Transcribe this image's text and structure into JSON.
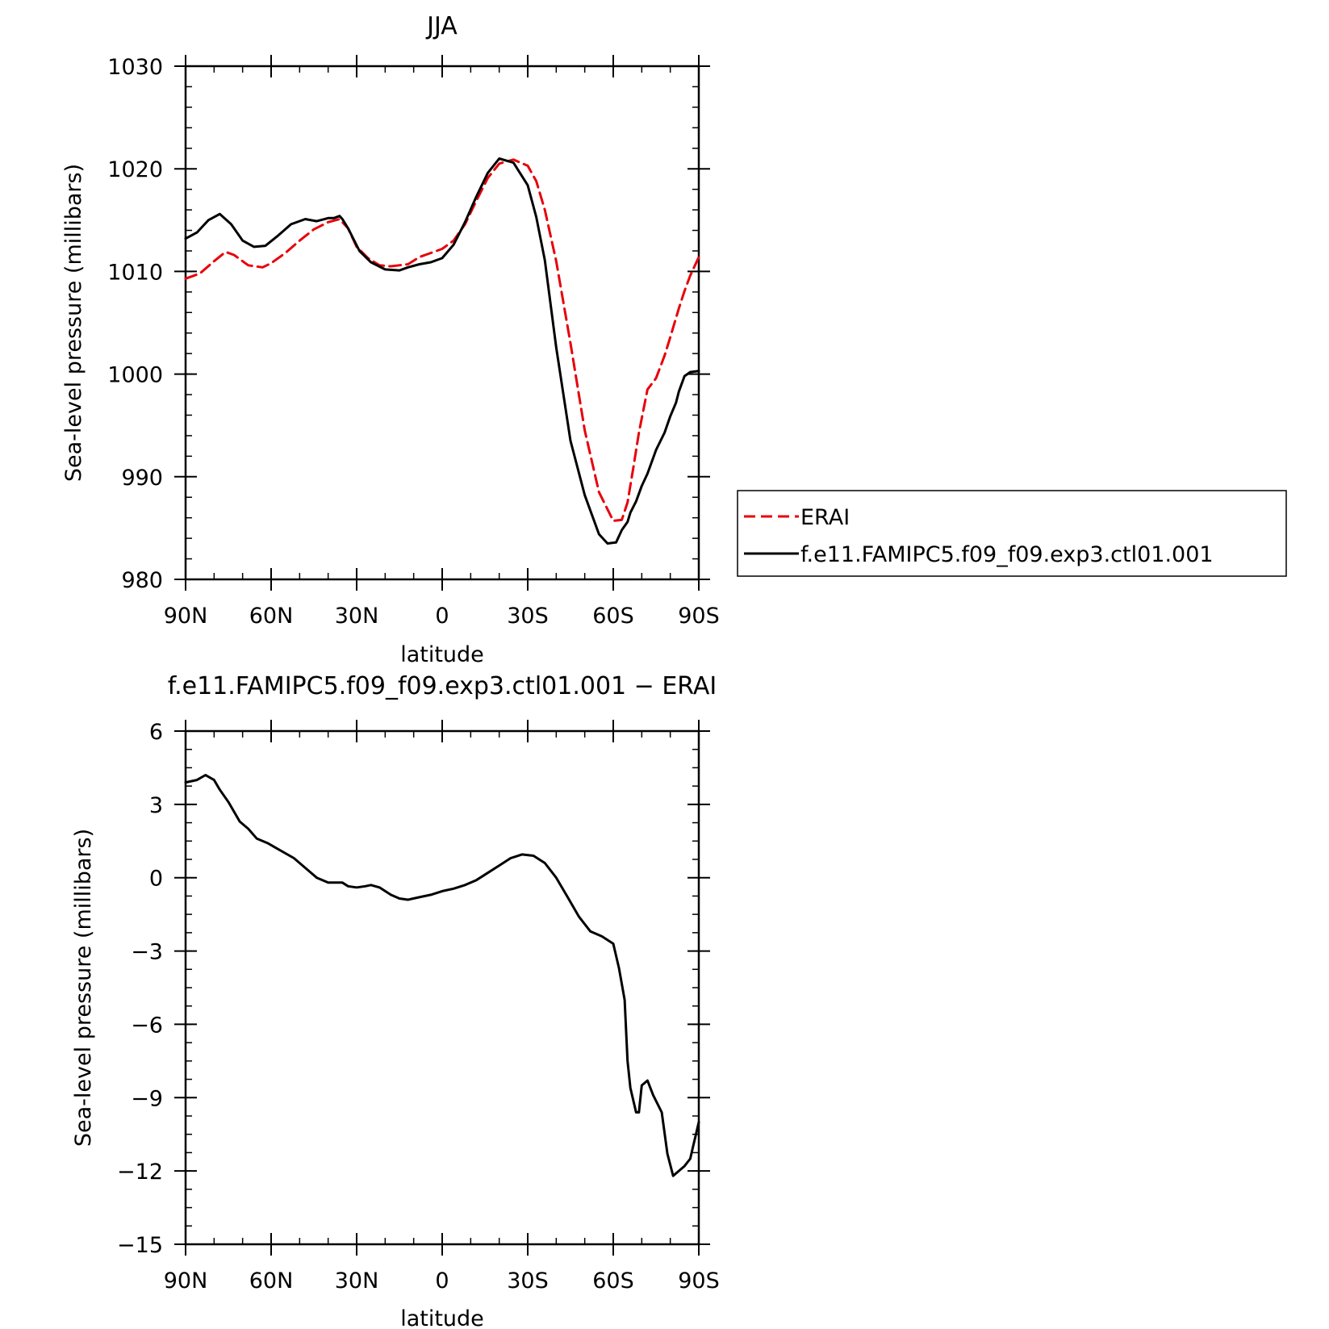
{
  "chart_data": [
    {
      "type": "line",
      "title": "JJA",
      "xlabel": "latitude",
      "ylabel": "Sea-level pressure (millibars)",
      "xlim": [
        90,
        -90
      ],
      "ylim": [
        980,
        1030
      ],
      "x_ticks": [
        90,
        60,
        30,
        0,
        -30,
        -60,
        -90
      ],
      "x_tick_labels": [
        "90N",
        "60N",
        "30N",
        "0",
        "30S",
        "60S",
        "90S"
      ],
      "y_ticks": [
        980,
        990,
        1000,
        1010,
        1020,
        1030
      ],
      "y_tick_labels": [
        "980",
        "990",
        "1000",
        "1010",
        "1020",
        "1030"
      ],
      "legend_position": "right",
      "series": [
        {
          "name": "ERAI",
          "color": "#e8000b",
          "dash": "dashed",
          "x": [
            90,
            85,
            80,
            76,
            73,
            68,
            63,
            60,
            55,
            50,
            45,
            40,
            36,
            33,
            30,
            26,
            22,
            18,
            12,
            8,
            4,
            0,
            -4,
            -8,
            -12,
            -16,
            -20,
            -25,
            -30,
            -33,
            -36,
            -40,
            -45,
            -50,
            -55,
            -60,
            -63,
            -65,
            -67,
            -69,
            -72,
            -75,
            -78,
            -80,
            -83,
            -85,
            -87,
            -90
          ],
          "y": [
            1009.3,
            1009.8,
            1011,
            1011.9,
            1011.6,
            1010.6,
            1010.4,
            1010.8,
            1011.8,
            1013,
            1014.1,
            1014.8,
            1015.1,
            1014.2,
            1012.4,
            1011.3,
            1010.6,
            1010.5,
            1010.7,
            1011.4,
            1011.8,
            1012.2,
            1013,
            1014.6,
            1016.9,
            1019.1,
            1020.5,
            1020.9,
            1020.3,
            1018.8,
            1016,
            1011,
            1003,
            994.5,
            988.5,
            985.7,
            985.8,
            987.5,
            990.8,
            994.3,
            998.5,
            999.6,
            1001.8,
            1003.6,
            1006.4,
            1008.1,
            1009.6,
            1011.4
          ]
        },
        {
          "name": "f.e11.FAMIPC5.f09_f09.exp3.ctl01.001",
          "color": "#000000",
          "dash": "solid",
          "x": [
            90,
            86,
            82,
            78,
            74,
            70,
            66,
            62,
            58,
            53,
            48,
            44,
            40,
            38,
            36,
            35,
            33,
            29,
            25,
            20,
            15,
            12,
            8,
            4,
            0,
            -4,
            -8,
            -12,
            -16,
            -20,
            -25,
            -30,
            -33,
            -36,
            -40,
            -45,
            -50,
            -55,
            -58,
            -61,
            -63,
            -65,
            -66,
            -68,
            -70,
            -72,
            -75,
            -78,
            -80,
            -82,
            -83,
            -85,
            -87,
            -90
          ],
          "y": [
            1013.2,
            1013.8,
            1015,
            1015.6,
            1014.6,
            1013,
            1012.4,
            1012.5,
            1013.4,
            1014.6,
            1015.1,
            1014.9,
            1015.2,
            1015.2,
            1015.4,
            1015.1,
            1014.2,
            1012,
            1010.9,
            1010.2,
            1010.1,
            1010.4,
            1010.7,
            1010.9,
            1011.3,
            1012.6,
            1014.8,
            1017.3,
            1019.6,
            1021,
            1020.6,
            1018.4,
            1015.3,
            1011.1,
            1002.6,
            993.5,
            988.2,
            984.4,
            983.5,
            983.6,
            984.8,
            985.6,
            986.5,
            987.6,
            989.1,
            990.3,
            992.6,
            994.3,
            995.9,
            997.2,
            998.3,
            999.8,
            1000.2,
            1000.3
          ]
        }
      ]
    },
    {
      "type": "line",
      "title": "f.e11.FAMIPC5.f09_f09.exp3.ctl01.001 − ERAI",
      "xlabel": "latitude",
      "ylabel": "Sea-level pressure (millibars)",
      "xlim": [
        90,
        -90
      ],
      "ylim": [
        -15,
        6
      ],
      "x_ticks": [
        90,
        60,
        30,
        0,
        -30,
        -60,
        -90
      ],
      "x_tick_labels": [
        "90N",
        "60N",
        "30N",
        "0",
        "30S",
        "60S",
        "90S"
      ],
      "y_ticks": [
        -15,
        -12,
        -9,
        -6,
        -3,
        0,
        3,
        6
      ],
      "y_tick_labels": [
        "−15",
        "−12",
        "−9",
        "−6",
        "−3",
        "0",
        "3",
        "6"
      ],
      "series": [
        {
          "name": "",
          "color": "#000000",
          "dash": "solid",
          "x": [
            90,
            86,
            83,
            80,
            78,
            75,
            71,
            68,
            65,
            61,
            58,
            52,
            47,
            44,
            40,
            37,
            35,
            33,
            30,
            27,
            25,
            22,
            18,
            15,
            12,
            8,
            4,
            0,
            -4,
            -8,
            -12,
            -16,
            -20,
            -24,
            -28,
            -32,
            -36,
            -40,
            -44,
            -48,
            -52,
            -56,
            -60,
            -62,
            -64,
            -65,
            -66,
            -68,
            -69,
            -70,
            -72,
            -74,
            -77,
            -79,
            -81,
            -83,
            -85,
            -87,
            -88,
            -89,
            -90
          ],
          "y": [
            3.9,
            4,
            4.2,
            4,
            3.6,
            3.1,
            2.3,
            2,
            1.6,
            1.4,
            1.2,
            0.8,
            0.3,
            0,
            -0.2,
            -0.2,
            -0.2,
            -0.35,
            -0.4,
            -0.35,
            -0.3,
            -0.4,
            -0.7,
            -0.85,
            -0.9,
            -0.8,
            -0.7,
            -0.55,
            -0.45,
            -0.3,
            -0.1,
            0.2,
            0.5,
            0.8,
            0.95,
            0.9,
            0.6,
            0,
            -0.8,
            -1.6,
            -2.2,
            -2.4,
            -2.7,
            -3.7,
            -5,
            -7.5,
            -8.6,
            -9.6,
            -9.6,
            -8.5,
            -8.3,
            -8.9,
            -9.6,
            -11.3,
            -12.2,
            -12.0,
            -11.8,
            -11.5,
            -11.0,
            -10.5,
            -10.0
          ]
        }
      ]
    }
  ]
}
